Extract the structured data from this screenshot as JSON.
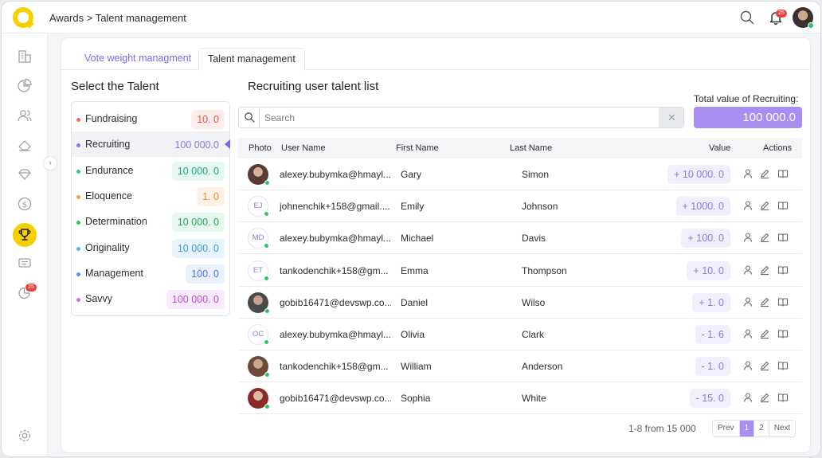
{
  "header": {
    "breadcrumb": "Awards > Talent management",
    "notification_count": "25"
  },
  "sidebar": {
    "items": [
      "buildings-icon",
      "pie-chart-icon",
      "users-icon",
      "eraser-icon",
      "diamond-icon",
      "dollar-icon",
      "trophy-icon",
      "list-icon",
      "chart-refresh-icon"
    ],
    "badge": "25",
    "active": "trophy-icon"
  },
  "tabs": [
    {
      "label": "Vote weight managment",
      "active": false
    },
    {
      "label": "Talent management",
      "active": true
    }
  ],
  "talent": {
    "title": "Select the Talent",
    "items": [
      {
        "name": "Fundraising",
        "value": "10. 0",
        "dot": "#ef6b6b",
        "fg": "#e5534b",
        "bg": "#fdecec"
      },
      {
        "name": "Recruiting",
        "value": "100 000.0",
        "dot": "#8b78e8",
        "fg": "#8b78e8",
        "bg": "transparent",
        "selected": true
      },
      {
        "name": "Endurance",
        "value": "10 000. 0",
        "dot": "#2ec4a0",
        "fg": "#1fa884",
        "bg": "#e6f8f2"
      },
      {
        "name": "Eloquence",
        "value": "1. 0",
        "dot": "#f5a04a",
        "fg": "#ee8a2e",
        "bg": "#fef2e6"
      },
      {
        "name": "Determination",
        "value": "10 000. 0",
        "dot": "#2ec46a",
        "fg": "#22a85a",
        "bg": "#e7f8ee"
      },
      {
        "name": "Originality",
        "value": "10 000. 0",
        "dot": "#56b4e9",
        "fg": "#3a9ad8",
        "bg": "#e8f4fc"
      },
      {
        "name": "Management",
        "value": "100. 0",
        "dot": "#6b8fe8",
        "fg": "#4a74e0",
        "bg": "#eaf0fc"
      },
      {
        "name": "Savvy",
        "value": "100 000. 0",
        "dot": "#d26be8",
        "fg": "#b54ed2",
        "bg": "#f8e9fc"
      }
    ]
  },
  "recruiting": {
    "title": "Recruiting user talent list",
    "total_label": "Total value of Recruiting:",
    "total_value": "100 000.0",
    "search_placeholder": "Search",
    "columns": {
      "photo": "Photo",
      "username": "User Name",
      "first": "First Name",
      "last": "Last Name",
      "value": "Value",
      "actions": "Actions"
    },
    "rows": [
      {
        "avatar": "photo",
        "username": "alexey.bubymka@hmayl...",
        "first": "Gary",
        "last": "Simon",
        "value": "+ 10 000. 0"
      },
      {
        "avatar": "EJ",
        "username": "johnenchik+158@gmail....",
        "first": "Emily",
        "last": "Johnson",
        "value": "+ 1000. 0"
      },
      {
        "avatar": "MD",
        "username": "alexey.bubymka@hmayl...",
        "first": "Michael",
        "last": "Davis",
        "value": "+ 100. 0"
      },
      {
        "avatar": "ET",
        "username": "tankodenchik+158@gm...",
        "first": "Emma",
        "last": "Thompson",
        "value": "+ 10. 0"
      },
      {
        "avatar": "photo",
        "username": "gobib16471@devswp.co...",
        "first": "Daniel",
        "last": "Wilso",
        "value": "+ 1. 0"
      },
      {
        "avatar": "OC",
        "username": "alexey.bubymka@hmayl...",
        "first": "Olivia",
        "last": "Clark",
        "value": "- 1. 6"
      },
      {
        "avatar": "photo",
        "username": "tankodenchik+158@gm...",
        "first": "William",
        "last": "Anderson",
        "value": "- 1. 0"
      },
      {
        "avatar": "photo",
        "username": "gobib16471@devswp.co...",
        "first": "Sophia",
        "last": "White",
        "value": "- 15. 0"
      }
    ],
    "pagination": {
      "info": "1-8 from 15 000",
      "prev": "Prev",
      "pages": [
        "1",
        "2"
      ],
      "current": "1",
      "next": "Next"
    }
  }
}
